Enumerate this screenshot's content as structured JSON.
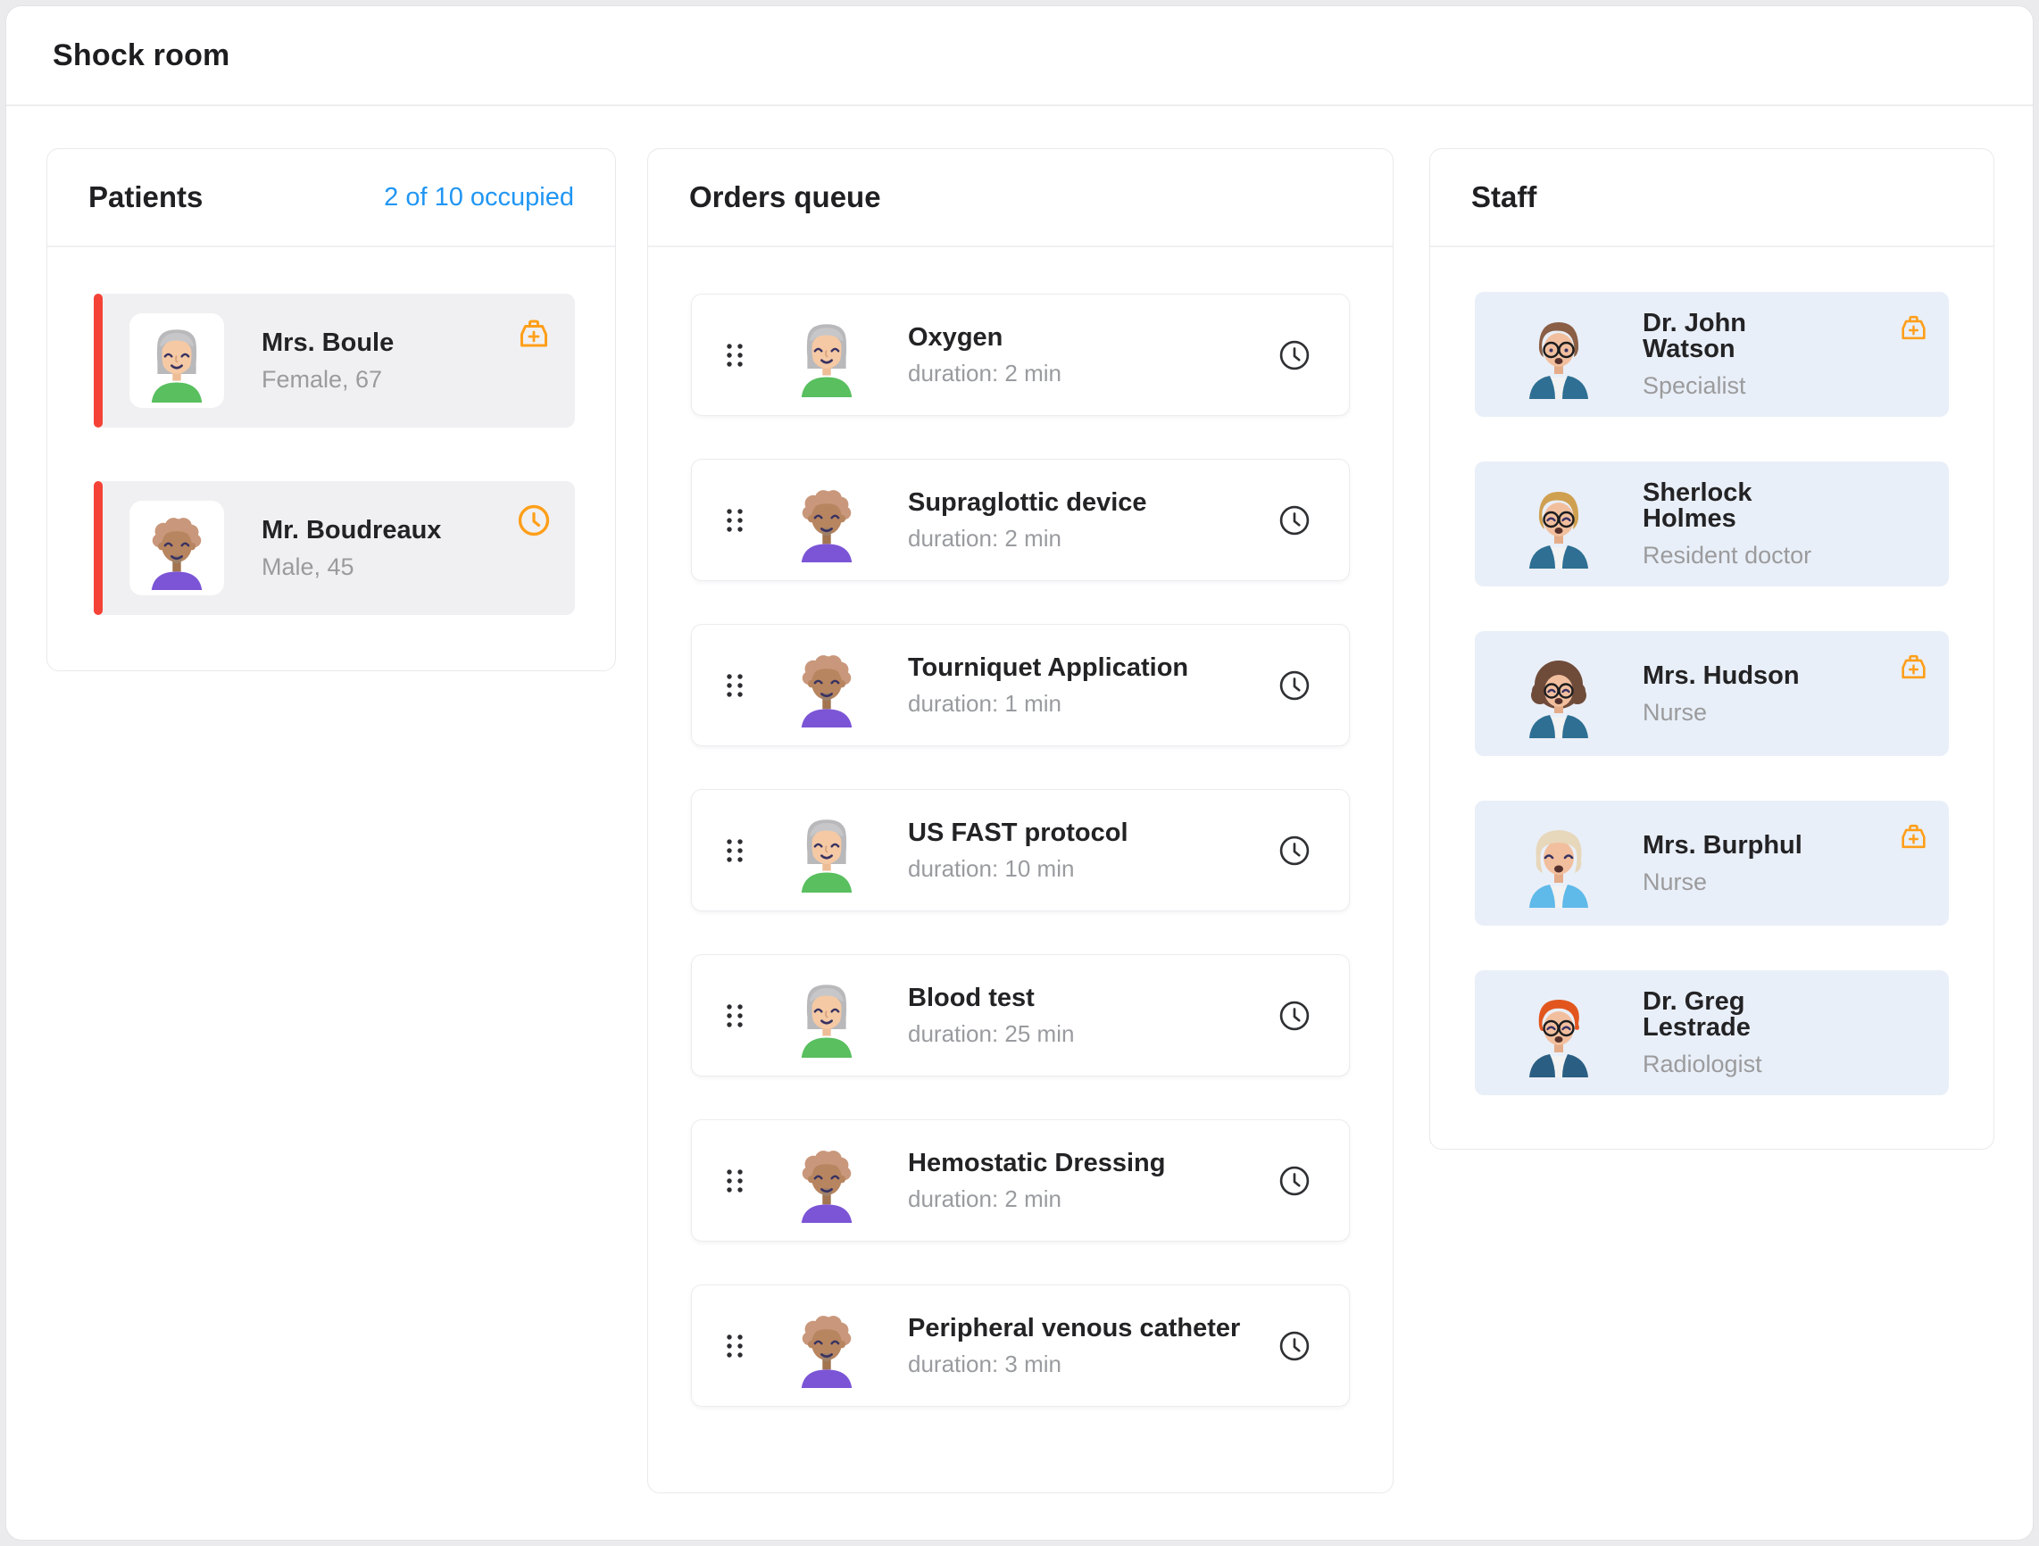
{
  "page": {
    "title": "Shock room"
  },
  "patients_panel": {
    "title": "Patients",
    "occupancy": "2 of 10 occupied",
    "patients": [
      {
        "name": "Mrs. Boule",
        "details": "Female, 67",
        "avatar": "elderly-woman",
        "status_icon": "first-aid-kit"
      },
      {
        "name": "Mr. Boudreaux",
        "details": "Male, 45",
        "avatar": "curly-man",
        "status_icon": "clock"
      }
    ]
  },
  "orders_panel": {
    "title": "Orders queue",
    "orders": [
      {
        "title": "Oxygen",
        "duration": "duration: 2 min",
        "avatar": "elderly-woman"
      },
      {
        "title": "Supraglottic device",
        "duration": "duration: 2 min",
        "avatar": "curly-man"
      },
      {
        "title": "Tourniquet Application",
        "duration": "duration: 1 min",
        "avatar": "curly-man"
      },
      {
        "title": "US FAST protocol",
        "duration": "duration: 10 min",
        "avatar": "elderly-woman"
      },
      {
        "title": "Blood test",
        "duration": "duration: 25 min",
        "avatar": "elderly-woman"
      },
      {
        "title": "Hemostatic Dressing",
        "duration": "duration: 2 min",
        "avatar": "curly-man"
      },
      {
        "title": "Peripheral venous catheter",
        "duration": "duration: 3 min",
        "avatar": "curly-man"
      }
    ]
  },
  "staff_panel": {
    "title": "Staff",
    "staff": [
      {
        "name": "Dr. John Watson",
        "role": "Specialist",
        "avatar": "watson",
        "status_icon": "first-aid-kit"
      },
      {
        "name": "Sherlock Holmes",
        "role": "Resident doctor",
        "avatar": "holmes",
        "status_icon": null
      },
      {
        "name": "Mrs. Hudson",
        "role": "Nurse",
        "avatar": "hudson",
        "status_icon": "first-aid-kit"
      },
      {
        "name": "Mrs. Burphul",
        "role": "Nurse",
        "avatar": "burphul",
        "status_icon": "first-aid-kit"
      },
      {
        "name": "Dr. Greg Lestrade",
        "role": "Radiologist",
        "avatar": "lestrade",
        "status_icon": null
      }
    ]
  },
  "colors": {
    "accent_blue": "#2196f3",
    "alert_red": "#f44336",
    "icon_orange": "#ff9f1a",
    "patient_bg": "#f0f0f2",
    "staff_bg": "#e9eff8"
  }
}
